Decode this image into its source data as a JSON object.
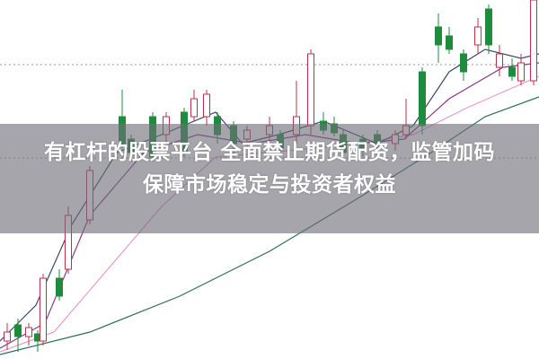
{
  "headline": {
    "line1": "有杠杆的股票平台 全面禁止期货配资，监管加码",
    "line2": "保障市场稳定与投资者权益"
  },
  "colors": {
    "up_candle": "#c0304a",
    "down_candle": "#1e8c3c",
    "ma_short": "#3a4a6a",
    "ma_mid": "#8a3a8a",
    "ma_long": "#e89ad0",
    "ma_longest": "#2e6e5a",
    "overlay": "#6e6e78"
  }
}
